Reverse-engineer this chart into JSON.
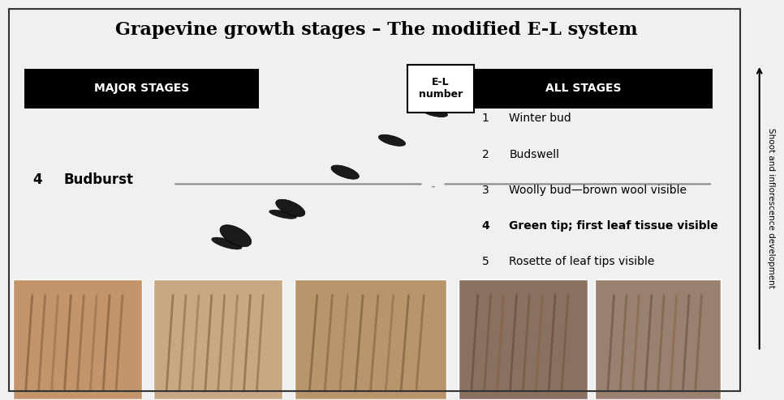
{
  "title": "Grapevine growth stages – The modified E-L system",
  "title_fontsize": 16,
  "background_color": "#f0f0f0",
  "panel_background": "#f5f5f5",
  "major_stages_label": "MAJOR STAGES",
  "all_stages_label": "ALL STAGES",
  "el_number_label": "E-L\nnumber",
  "budburst_number": "4",
  "budburst_label": "Budburst",
  "stages": [
    {
      "number": "1",
      "label": "Winter bud",
      "bold": false
    },
    {
      "number": "2",
      "label": "Budswell",
      "bold": false
    },
    {
      "number": "3",
      "label": "Woolly bud—brown wool visible",
      "bold": false
    },
    {
      "number": "4",
      "label": "Green tip; first leaf tissue visible",
      "bold": true
    },
    {
      "number": "5",
      "label": "Rosette of leaf tips visible",
      "bold": false
    }
  ],
  "side_label": "Shoot and inflorescence development",
  "header_bg": "#000000",
  "header_text_color": "#ffffff",
  "line_color": "#888888",
  "border_color": "#333333"
}
